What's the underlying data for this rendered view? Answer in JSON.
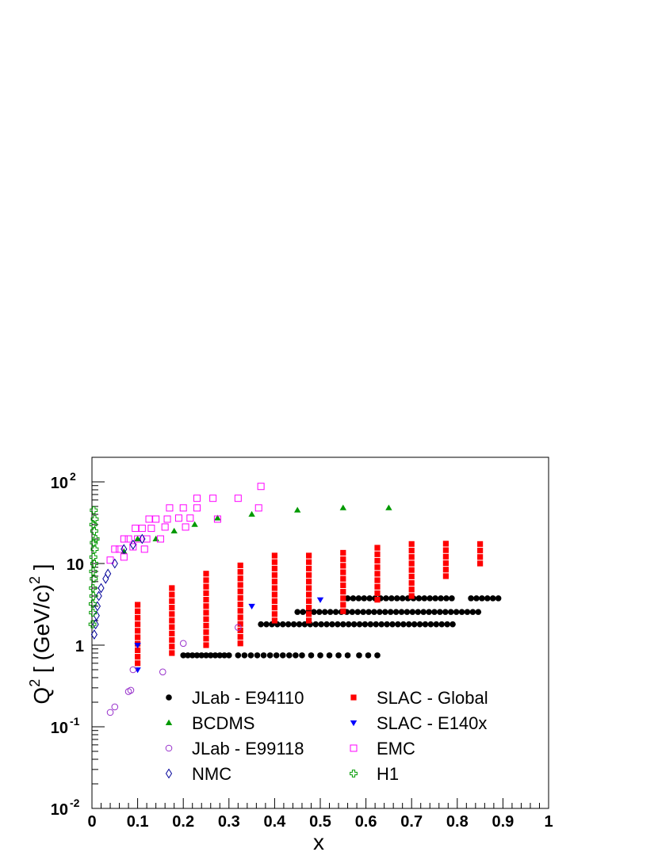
{
  "chart_data": {
    "type": "scatter",
    "title": "",
    "xlabel": "x",
    "ylabel_parts": {
      "q": "Q",
      "q_exp": "2",
      "mid": " [ (GeV/c)",
      "unit_exp": "2",
      "close": " ]"
    },
    "xlim": [
      0,
      1
    ],
    "ylim": [
      0.01,
      200
    ],
    "yscale": "log",
    "grid": false,
    "legend_position": "bottom-center",
    "x_ticks": [
      {
        "v": 0,
        "label": "0"
      },
      {
        "v": 0.1,
        "label": "0.1"
      },
      {
        "v": 0.2,
        "label": "0.2"
      },
      {
        "v": 0.3,
        "label": "0.3"
      },
      {
        "v": 0.4,
        "label": "0.4"
      },
      {
        "v": 0.5,
        "label": "0.5"
      },
      {
        "v": 0.6,
        "label": "0.6"
      },
      {
        "v": 0.7,
        "label": "0.7"
      },
      {
        "v": 0.8,
        "label": "0.8"
      },
      {
        "v": 0.9,
        "label": "0.9"
      },
      {
        "v": 1,
        "label": "1"
      }
    ],
    "y_ticks": [
      {
        "v": 0.01,
        "base": "10",
        "exp": "-2"
      },
      {
        "v": 0.1,
        "base": "10",
        "exp": "-1"
      },
      {
        "v": 1,
        "base": "1",
        "exp": ""
      },
      {
        "v": 10,
        "base": "10",
        "exp": ""
      },
      {
        "v": 100,
        "base": "10",
        "exp": "2"
      }
    ],
    "series": [
      {
        "name": "JLab - E94110",
        "marker": "circle-filled",
        "color": "#000000",
        "rows": [
          {
            "q2": 0.75,
            "x_from": 0.2,
            "x_to": 0.3,
            "step": 0.01
          },
          {
            "q2": 0.75,
            "x_from": 0.32,
            "x_to": 0.46,
            "step": 0.014
          },
          {
            "q2": 0.75,
            "x_from": 0.48,
            "x_to": 0.56,
            "step": 0.02
          },
          {
            "q2": 0.75,
            "x_from": 0.585,
            "x_to": 0.625,
            "step": 0.02
          },
          {
            "q2": 1.8,
            "x_from": 0.37,
            "x_to": 0.8,
            "step": 0.012
          },
          {
            "q2": 2.55,
            "x_from": 0.45,
            "x_to": 0.85,
            "step": 0.012
          },
          {
            "q2": 3.75,
            "x_from": 0.56,
            "x_to": 0.79,
            "step": 0.012
          },
          {
            "q2": 3.75,
            "x_from": 0.83,
            "x_to": 0.89,
            "step": 0.012
          }
        ]
      },
      {
        "name": "SLAC - Global",
        "marker": "square-filled",
        "color": "#ff0000",
        "columns": [
          {
            "x": 0.1,
            "q2_from": 0.6,
            "q2_to": 3.2
          },
          {
            "x": 0.175,
            "q2_from": 0.8,
            "q2_to": 5.0
          },
          {
            "x": 0.25,
            "q2_from": 1.0,
            "q2_to": 8.0
          },
          {
            "x": 0.325,
            "q2_from": 1.05,
            "q2_to": 10.0
          },
          {
            "x": 0.4,
            "q2_from": 2.0,
            "q2_to": 13.0
          },
          {
            "x": 0.475,
            "q2_from": 2.0,
            "q2_to": 13.0
          },
          {
            "x": 0.55,
            "q2_from": 2.6,
            "q2_to": 16.0
          },
          {
            "x": 0.625,
            "q2_from": 3.6,
            "q2_to": 16.5
          },
          {
            "x": 0.7,
            "q2_from": 4.0,
            "q2_to": 20.0
          },
          {
            "x": 0.775,
            "q2_from": 7.0,
            "q2_to": 20.0
          },
          {
            "x": 0.85,
            "q2_from": 10.0,
            "q2_to": 20.0
          }
        ]
      },
      {
        "name": "BCDMS",
        "marker": "triangle-up-filled",
        "color": "#009900",
        "points": [
          [
            0.07,
            14
          ],
          [
            0.1,
            20
          ],
          [
            0.14,
            20
          ],
          [
            0.18,
            25
          ],
          [
            0.225,
            30
          ],
          [
            0.275,
            36
          ],
          [
            0.35,
            40
          ],
          [
            0.45,
            45
          ],
          [
            0.55,
            48
          ],
          [
            0.65,
            48
          ]
        ]
      },
      {
        "name": "SLAC - E140x",
        "marker": "triangle-down-filled",
        "color": "#0000ff",
        "points": [
          [
            0.1,
            0.5
          ],
          [
            0.1,
            1.0
          ],
          [
            0.35,
            3.0
          ],
          [
            0.5,
            3.6
          ]
        ]
      },
      {
        "name": "JLab - E99118",
        "marker": "circle-open",
        "color": "#9933cc",
        "points": [
          [
            0.04,
            0.15
          ],
          [
            0.05,
            0.175
          ],
          [
            0.08,
            0.27
          ],
          [
            0.085,
            0.28
          ],
          [
            0.09,
            0.5
          ],
          [
            0.155,
            0.47
          ],
          [
            0.2,
            1.05
          ],
          [
            0.32,
            1.65
          ]
        ]
      },
      {
        "name": "EMC",
        "marker": "square-open",
        "color": "#ff00ff",
        "points": [
          [
            0.04,
            11
          ],
          [
            0.05,
            15
          ],
          [
            0.06,
            15
          ],
          [
            0.07,
            12
          ],
          [
            0.07,
            20
          ],
          [
            0.08,
            20
          ],
          [
            0.09,
            16
          ],
          [
            0.095,
            27
          ],
          [
            0.1,
            20
          ],
          [
            0.11,
            27
          ],
          [
            0.115,
            15
          ],
          [
            0.12,
            20
          ],
          [
            0.125,
            35
          ],
          [
            0.13,
            27
          ],
          [
            0.14,
            35
          ],
          [
            0.15,
            20
          ],
          [
            0.16,
            28
          ],
          [
            0.165,
            35
          ],
          [
            0.17,
            48
          ],
          [
            0.19,
            36
          ],
          [
            0.2,
            48
          ],
          [
            0.205,
            28
          ],
          [
            0.215,
            36
          ],
          [
            0.23,
            48
          ],
          [
            0.23,
            63
          ],
          [
            0.265,
            63
          ],
          [
            0.275,
            35
          ],
          [
            0.32,
            63
          ],
          [
            0.365,
            48
          ],
          [
            0.37,
            88
          ]
        ]
      },
      {
        "name": "NMC",
        "marker": "diamond-open",
        "color": "#000099",
        "points": [
          [
            0.005,
            1.35
          ],
          [
            0.008,
            1.8
          ],
          [
            0.01,
            2.3
          ],
          [
            0.012,
            3.0
          ],
          [
            0.015,
            4.0
          ],
          [
            0.02,
            5.0
          ],
          [
            0.03,
            6.5
          ],
          [
            0.035,
            7.5
          ],
          [
            0.05,
            10
          ],
          [
            0.07,
            15
          ],
          [
            0.09,
            17
          ],
          [
            0.11,
            20
          ]
        ]
      },
      {
        "name": "H1",
        "marker": "cross-open",
        "color": "#009900",
        "points": [
          [
            0.001,
            1.8
          ],
          [
            0.002,
            2.5
          ],
          [
            0.0015,
            3.2
          ],
          [
            0.003,
            4.0
          ],
          [
            0.002,
            5.0
          ],
          [
            0.004,
            6.5
          ],
          [
            0.0025,
            8.0
          ],
          [
            0.005,
            10
          ],
          [
            0.003,
            12
          ],
          [
            0.006,
            15
          ],
          [
            0.004,
            18
          ],
          [
            0.008,
            20
          ],
          [
            0.005,
            25
          ],
          [
            0.003,
            30
          ],
          [
            0.006,
            35
          ],
          [
            0.004,
            45
          ]
        ]
      }
    ],
    "legend_order": [
      [
        "JLab - E94110",
        "SLAC - Global"
      ],
      [
        "BCDMS",
        "SLAC - E140x"
      ],
      [
        "JLab - E99118",
        "EMC"
      ],
      [
        "NMC",
        "H1"
      ]
    ]
  }
}
